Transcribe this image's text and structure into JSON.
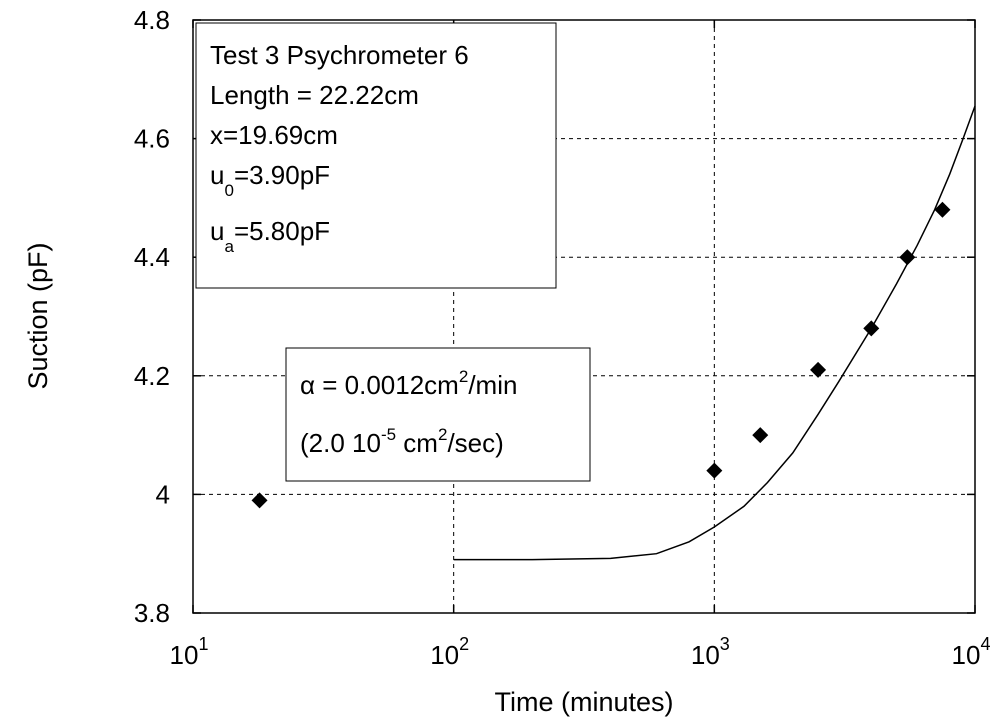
{
  "chart_data": {
    "type": "scatter",
    "xlabel": "Time (minutes)",
    "ylabel": "Suction (pF)",
    "xscale": "log",
    "xlim": [
      10,
      10000
    ],
    "ylim": [
      3.8,
      4.8
    ],
    "grid": true,
    "x_ticks": [
      {
        "value": 10,
        "base": "10",
        "exp": "1"
      },
      {
        "value": 100,
        "base": "10",
        "exp": "2"
      },
      {
        "value": 1000,
        "base": "10",
        "exp": "3"
      },
      {
        "value": 10000,
        "base": "10",
        "exp": "4"
      }
    ],
    "y_ticks": [
      {
        "value": 3.8,
        "label": "3.8"
      },
      {
        "value": 4.0,
        "label": "4"
      },
      {
        "value": 4.2,
        "label": "4.2"
      },
      {
        "value": 4.4,
        "label": "4.4"
      },
      {
        "value": 4.6,
        "label": "4.6"
      },
      {
        "value": 4.8,
        "label": "4.8"
      }
    ],
    "series": [
      {
        "kind": "markers",
        "marker": "diamond",
        "x": [
          18,
          1000,
          1500,
          2500,
          4000,
          5500,
          7500
        ],
        "y": [
          3.99,
          4.04,
          4.1,
          4.21,
          4.28,
          4.4,
          4.48
        ]
      },
      {
        "kind": "line",
        "x": [
          100,
          200,
          400,
          600,
          800,
          1000,
          1300,
          1600,
          2000,
          2500,
          3000,
          4000,
          5000,
          6000,
          7000,
          8000,
          9000,
          10000
        ],
        "y": [
          3.89,
          3.89,
          3.892,
          3.9,
          3.92,
          3.945,
          3.98,
          4.02,
          4.07,
          4.135,
          4.19,
          4.28,
          4.355,
          4.42,
          4.48,
          4.54,
          4.6,
          4.655
        ]
      }
    ],
    "annotations": {
      "info_box": {
        "line1": "Test 3 Psychrometer 6",
        "line2": "Length = 22.22cm",
        "line3": "x=19.69cm",
        "u0_main": "u",
        "u0_sub": "0",
        "u0_value": "=3.90pF",
        "ua_main": "u",
        "ua_sub": "a",
        "ua_value": "=5.80pF"
      },
      "alpha_box": {
        "line1_prefix": "α = 0.0012cm",
        "line1_sup": "2",
        "line1_suffix": "/min",
        "line2_prefix": "(2.0 10",
        "line2_sup1": "-5",
        "line2_mid": " cm",
        "line2_sup2": "2",
        "line2_suffix": "/sec)"
      }
    }
  }
}
